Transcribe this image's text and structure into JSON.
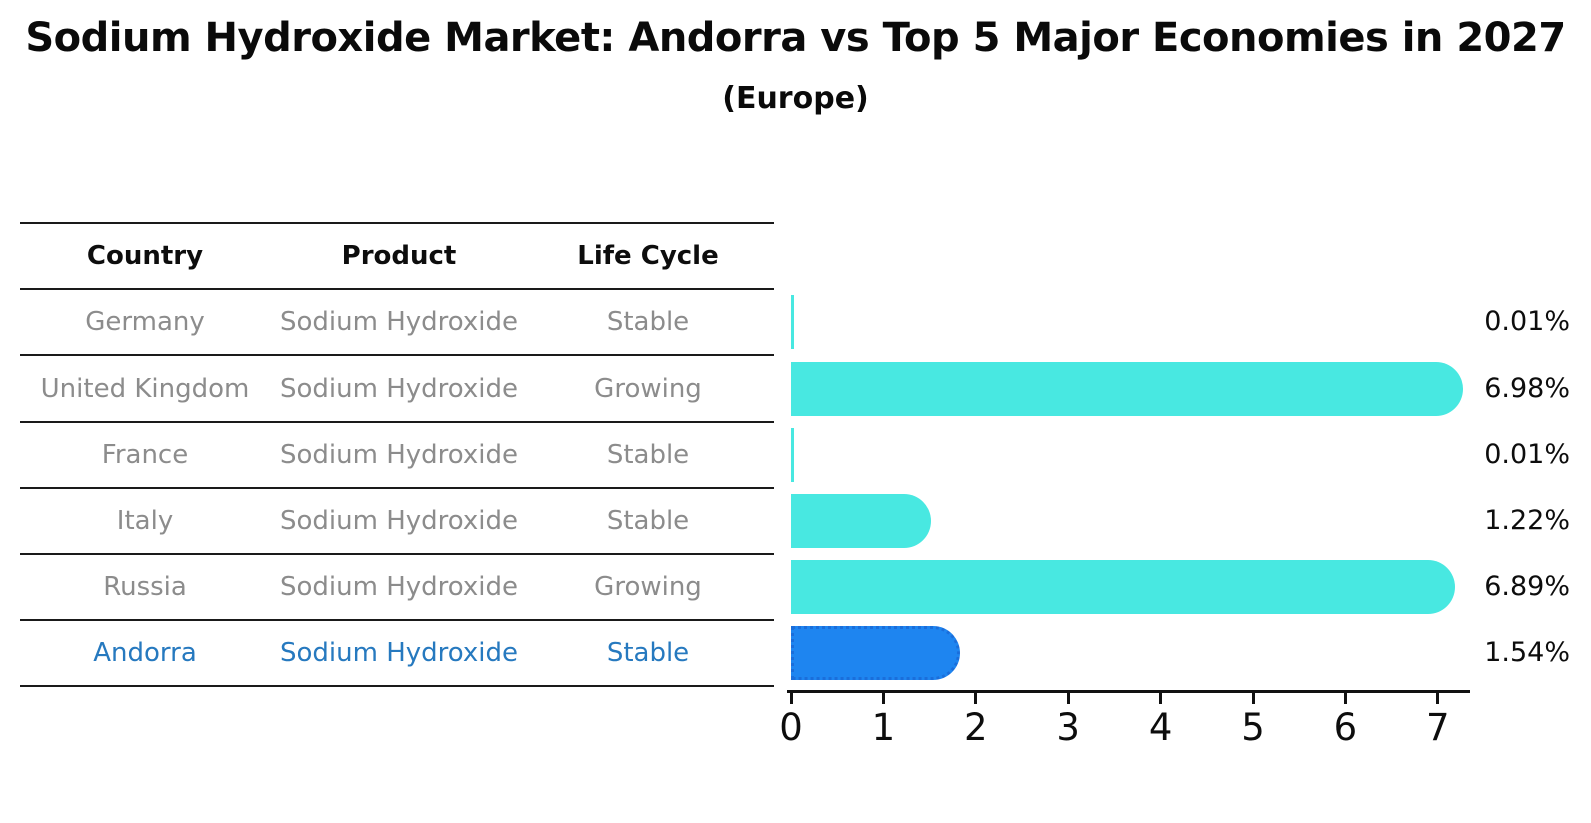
{
  "title": "Sodium Hydroxide Market: Andorra vs Top 5 Major Economies in 2027",
  "subtitle": "(Europe)",
  "table": {
    "columns": [
      "Country",
      "Product",
      "Life Cycle"
    ],
    "rows": [
      {
        "country": "Germany",
        "product": "Sodium Hydroxide",
        "life_cycle": "Stable",
        "highlight": false
      },
      {
        "country": "United Kingdom",
        "product": "Sodium Hydroxide",
        "life_cycle": "Growing",
        "highlight": false
      },
      {
        "country": "France",
        "product": "Sodium Hydroxide",
        "life_cycle": "Stable",
        "highlight": false
      },
      {
        "country": "Italy",
        "product": "Sodium Hydroxide",
        "life_cycle": "Stable",
        "highlight": false
      },
      {
        "country": "Russia",
        "product": "Sodium Hydroxide",
        "life_cycle": "Growing",
        "highlight": false
      },
      {
        "country": "Andorra",
        "product": "Sodium Hydroxide",
        "life_cycle": "Stable",
        "highlight": true
      }
    ]
  },
  "chart_data": {
    "type": "bar",
    "orientation": "horizontal",
    "title": "Sodium Hydroxide Market: Andorra vs Top 5 Major Economies in 2027",
    "subtitle": "(Europe)",
    "categories": [
      "Germany",
      "United Kingdom",
      "France",
      "Italy",
      "Russia",
      "Andorra"
    ],
    "values": [
      0.01,
      6.98,
      0.01,
      1.22,
      6.89,
      1.54
    ],
    "value_labels": [
      "0.01%",
      "6.98%",
      "0.01%",
      "1.22%",
      "6.89%",
      "1.54%"
    ],
    "unit": "%",
    "x_ticks": [
      "0",
      "1",
      "2",
      "3",
      "4",
      "5",
      "6",
      "7"
    ],
    "xlim": [
      0,
      7.33
    ],
    "grid": false,
    "legend": "none",
    "highlight_index": 5,
    "colors": {
      "bar": "#48e8e1",
      "highlight_bar": "#1e85f0",
      "highlight_border": "#1a6edb",
      "highlight_text": "#2679bf",
      "row_text": "#8c8c8c",
      "header_text": "#0d0d0d",
      "axis": "#111111"
    }
  }
}
